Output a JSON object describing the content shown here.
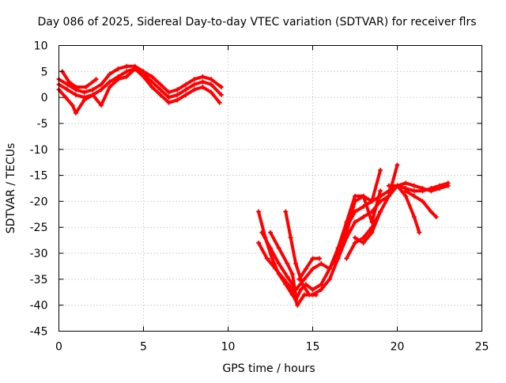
{
  "chart_data": {
    "type": "line",
    "title": "Day 086 of 2025, Sidereal Day-to-day VTEC variation (SDTVAR) for receiver flrs",
    "xlabel": "GPS time / hours",
    "ylabel": "SDTVAR / TECUs",
    "xlim": [
      0,
      25
    ],
    "ylim": [
      -45,
      10
    ],
    "xticks": [
      0,
      5,
      10,
      15,
      20,
      25
    ],
    "yticks": [
      -45,
      -40,
      -35,
      -30,
      -25,
      -20,
      -15,
      -10,
      -5,
      0,
      5,
      10
    ],
    "grid": true,
    "series_color": "#ff0000",
    "series": [
      {
        "x": [
          0.0,
          0.5,
          1.0,
          1.5,
          2.0,
          2.5,
          3.0,
          3.5,
          4.0,
          4.5,
          5.0,
          5.5,
          6.0,
          6.5,
          7.0,
          7.5,
          8.0,
          8.5,
          9.0,
          9.6
        ],
        "y": [
          3.5,
          2.5,
          1.5,
          1.0,
          1.5,
          2.5,
          4.5,
          5.5,
          6.0,
          6.0,
          5.0,
          4.0,
          2.5,
          1.0,
          1.5,
          2.5,
          3.5,
          4.0,
          3.5,
          2.0
        ]
      },
      {
        "x": [
          0.0,
          0.5,
          1.0,
          1.5,
          2.0,
          2.5,
          3.0,
          3.5,
          4.0,
          4.5,
          5.0,
          5.5,
          6.0,
          6.5,
          7.0,
          7.5,
          8.0,
          8.5,
          9.0,
          9.6
        ],
        "y": [
          2.5,
          1.5,
          0.5,
          0.0,
          0.5,
          1.5,
          3.0,
          4.0,
          5.0,
          5.5,
          4.5,
          3.0,
          1.5,
          0.0,
          0.5,
          1.5,
          2.5,
          3.0,
          2.5,
          0.5
        ]
      },
      {
        "x": [
          0.0,
          0.4,
          0.8,
          1.0,
          1.5,
          2.0,
          2.5,
          3.0,
          3.5,
          4.0,
          4.5,
          5.0,
          5.5,
          6.0,
          6.5,
          7.0,
          7.5,
          8.0,
          8.5,
          9.0,
          9.5
        ],
        "y": [
          1.5,
          0.0,
          -1.5,
          -3.0,
          -0.5,
          0.5,
          -1.5,
          2.0,
          3.5,
          4.0,
          5.5,
          4.0,
          2.0,
          0.5,
          -1.0,
          -0.5,
          0.5,
          1.5,
          2.0,
          1.0,
          -1.0
        ]
      },
      {
        "x": [
          0.2,
          0.6,
          1.0,
          1.6,
          2.2
        ],
        "y": [
          5.0,
          3.0,
          2.0,
          2.0,
          3.5
        ]
      },
      {
        "x": [
          11.8,
          12.2,
          12.6,
          13.0,
          13.4,
          13.8,
          14.0,
          14.3,
          14.6,
          15.0,
          15.5,
          16.0,
          16.5,
          17.0,
          17.5,
          18.0,
          18.5,
          19.0,
          19.5,
          20.0,
          20.5,
          21.0,
          21.5,
          22.0,
          22.5,
          23.0
        ],
        "y": [
          -22.0,
          -27.0,
          -31.0,
          -34.0,
          -36.0,
          -38.0,
          -39.0,
          -37.0,
          -36.0,
          -37.0,
          -36.0,
          -33.0,
          -29.0,
          -25.0,
          -22.0,
          -21.0,
          -20.0,
          -19.0,
          -18.0,
          -17.0,
          -17.5,
          -18.0,
          -18.0,
          -17.5,
          -17.0,
          -16.5
        ]
      },
      {
        "x": [
          11.8,
          12.3,
          12.8,
          13.3,
          13.8,
          14.1,
          14.5,
          15.0,
          15.5,
          16.0,
          16.5,
          17.0,
          17.5,
          18.0,
          18.5,
          19.0,
          19.5,
          20.0,
          20.5,
          21.0,
          21.5,
          22.0,
          22.5,
          23.0
        ],
        "y": [
          -28.0,
          -31.0,
          -33.0,
          -35.0,
          -37.0,
          -40.0,
          -38.0,
          -38.0,
          -37.0,
          -35.0,
          -31.0,
          -27.0,
          -24.0,
          -23.0,
          -22.0,
          -20.0,
          -19.0,
          -17.0,
          -16.5,
          -17.0,
          -17.5,
          -18.0,
          -17.5,
          -17.0
        ]
      },
      {
        "x": [
          12.0,
          12.5,
          13.0,
          13.5,
          14.0,
          14.5,
          15.0,
          15.5,
          16.0,
          16.5,
          17.0,
          17.5,
          18.0,
          18.5,
          19.0
        ],
        "y": [
          -26.0,
          -29.0,
          -32.0,
          -34.5,
          -37.0,
          -35.0,
          -33.0,
          -32.0,
          -33.0,
          -30.0,
          -26.0,
          -20.0,
          -19.0,
          -24.0,
          -18.0
        ]
      },
      {
        "x": [
          12.5,
          13.0,
          13.5,
          13.8,
          14.0
        ],
        "y": [
          -26.0,
          -29.0,
          -32.0,
          -34.0,
          -38.0
        ]
      },
      {
        "x": [
          13.4,
          13.7,
          14.0,
          14.4,
          14.8,
          15.2
        ],
        "y": [
          -22.0,
          -27.0,
          -32.0,
          -36.0,
          -38.0,
          -38.0
        ]
      },
      {
        "x": [
          14.2,
          14.6,
          15.0,
          15.4
        ],
        "y": [
          -35.0,
          -33.0,
          -31.0,
          -31.0
        ]
      },
      {
        "x": [
          16.5,
          17.0,
          17.5,
          18.0,
          18.5,
          19.0
        ],
        "y": [
          -29.0,
          -24.0,
          -19.0,
          -19.0,
          -20.0,
          -14.0
        ]
      },
      {
        "x": [
          17.0,
          17.5,
          18.0,
          18.5,
          19.0,
          19.5,
          20.0
        ],
        "y": [
          -31.0,
          -28.0,
          -27.0,
          -25.0,
          -22.0,
          -19.0,
          -13.0
        ]
      },
      {
        "x": [
          17.5,
          18.0,
          18.5,
          19.0
        ],
        "y": [
          -27.0,
          -28.0,
          -26.0,
          -22.0
        ]
      },
      {
        "x": [
          19.5,
          20.0,
          20.5,
          21.0,
          21.3
        ],
        "y": [
          -17.0,
          -17.0,
          -19.0,
          -23.0,
          -26.0
        ]
      },
      {
        "x": [
          20.5,
          21.0,
          21.5,
          22.0,
          22.3
        ],
        "y": [
          -18.0,
          -19.0,
          -20.0,
          -22.0,
          -23.0
        ]
      }
    ]
  }
}
